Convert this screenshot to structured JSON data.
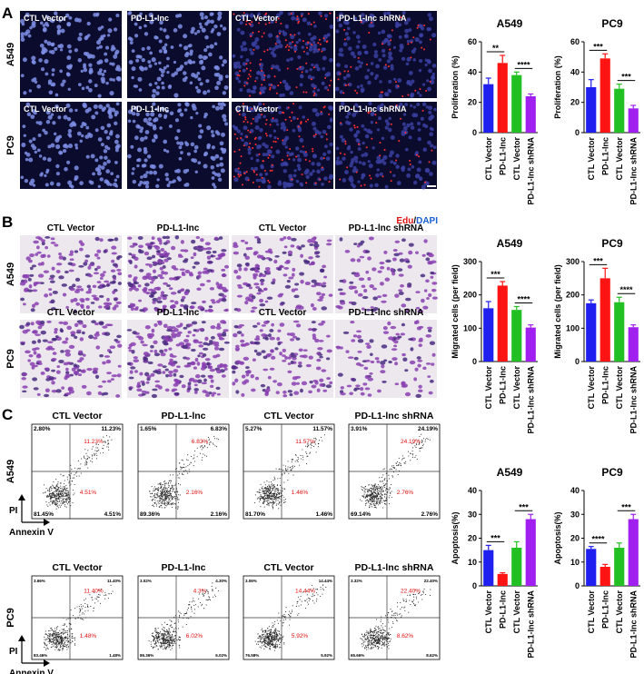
{
  "panels": [
    {
      "label": "A",
      "row_labels": [
        "A549",
        "PC9"
      ],
      "image_labels": [
        [
          "CTL Vector",
          "PD-L1-lnc",
          "CTL Vector",
          "PD-L1-lnc shRNA"
        ],
        [
          "CTL Vector",
          "PD-L1-lnc",
          "CTL Vector",
          "PD-L1-lnc shRNA"
        ]
      ],
      "stain": {
        "edu": "Edu",
        "slash": "/",
        "dapi": "DAPI"
      }
    },
    {
      "label": "B",
      "row_labels": [
        "A549",
        "PC9"
      ],
      "image_labels": [
        [
          "CTL Vector",
          "PD-L1-lnc",
          "CTL Vector",
          "PD-L1-lnc shRNA"
        ],
        [
          "CTL Vector",
          "PD-L1-lnc",
          "CTL Vector",
          "PD-L1-lnc shRNA"
        ]
      ]
    },
    {
      "label": "C",
      "row_labels": [
        "A549",
        "PC9"
      ],
      "image_labels": [
        [
          "CTL Vector",
          "PD-L1-lnc",
          "CTL Vector",
          "PD-L1-lnc shRNA"
        ],
        [
          "CTL Vector",
          "PD-L1-lnc",
          "CTL Vector",
          "PD-L1-lnc shRNA"
        ]
      ],
      "axis_labels": {
        "y": "PI",
        "x": "Annexin V"
      },
      "plots": [
        [
          {
            "quadrants": [
              "2.80%",
              "11.23%",
              "81.45%",
              "4.51%"
            ],
            "highlights": [
              "11.23%",
              "4.51%"
            ]
          },
          {
            "quadrants": [
              "1.65%",
              "6.83%",
              "89.36%",
              "2.16%"
            ],
            "highlights": [
              "6.83%",
              "2.16%"
            ]
          },
          {
            "quadrants": [
              "5.27%",
              "11.57%",
              "81.70%",
              "1.46%"
            ],
            "highlights": [
              "11.57%",
              "1.46%"
            ]
          },
          {
            "quadrants": [
              "3.91%",
              "24.19%",
              "69.14%",
              "2.76%"
            ],
            "highlights": [
              "24.19%",
              "2.76%"
            ]
          }
        ],
        [
          {
            "quadrants": [
              "3.66%",
              "11.40%",
              "83.46%",
              "1.48%"
            ],
            "highlights": [
              "11.40%",
              "1.48%"
            ]
          },
          {
            "quadrants": [
              "3.02%",
              "4.30%",
              "86.36%",
              "6.02%"
            ],
            "highlights": [
              "4.3%",
              "6.02%"
            ]
          },
          {
            "quadrants": [
              "3.06%",
              "14.44%",
              "76.58%",
              "5.92%"
            ],
            "highlights": [
              "14.44%",
              "5.92%"
            ]
          },
          {
            "quadrants": [
              "3.32%",
              "22.40%",
              "65.66%",
              "8.62%"
            ],
            "highlights": [
              "22.40%",
              "8.62%"
            ]
          }
        ]
      ]
    }
  ],
  "chart_data": [
    {
      "type": "bar",
      "title": "A549",
      "y_label": "Proliferation (%)",
      "categories": [
        "CTL Vector",
        "PD-L1-lnc",
        "CTL Vector",
        "PD-L1-lnc shRNA"
      ],
      "values": [
        32,
        46,
        38,
        24
      ],
      "errors": [
        4,
        5,
        2,
        1.5
      ],
      "colors": [
        "#1f1fef",
        "#ff1414",
        "#22c022",
        "#a020f0"
      ],
      "ylim": [
        0,
        60
      ],
      "yticks": [
        0,
        20,
        40,
        60
      ],
      "annotations": [
        "**",
        "****"
      ]
    },
    {
      "type": "bar",
      "title": "PC9",
      "y_label": "Proliferation (%)",
      "categories": [
        "CTL Vector",
        "PD-L1-lnc",
        "CTL Vector",
        "PD-L1-lnc shRNA"
      ],
      "values": [
        30,
        49,
        29,
        16
      ],
      "errors": [
        5,
        3,
        3,
        2
      ],
      "colors": [
        "#1f1fef",
        "#ff1414",
        "#22c022",
        "#a020f0"
      ],
      "ylim": [
        0,
        60
      ],
      "yticks": [
        0,
        20,
        40,
        60
      ],
      "annotations": [
        "***",
        "***"
      ]
    },
    {
      "type": "bar",
      "title": "A549",
      "y_label": "Migrated cells (per field)",
      "categories": [
        "CTL Vector",
        "PD-L1-lnc",
        "CTL Vector",
        "PD-L1-lnc shRNA"
      ],
      "values": [
        160,
        228,
        155,
        102
      ],
      "errors": [
        20,
        12,
        10,
        8
      ],
      "colors": [
        "#1f1fef",
        "#ff1414",
        "#22c022",
        "#a020f0"
      ],
      "ylim": [
        0,
        300
      ],
      "yticks": [
        0,
        100,
        200,
        300
      ],
      "annotations": [
        "***",
        "****"
      ]
    },
    {
      "type": "bar",
      "title": "PC9",
      "y_label": "Migrated cells (per field)",
      "categories": [
        "CTL Vector",
        "PD-L1-lnc",
        "CTL Vector",
        "PD-L1-lnc shRNA"
      ],
      "values": [
        175,
        250,
        178,
        103
      ],
      "errors": [
        10,
        30,
        15,
        7
      ],
      "colors": [
        "#1f1fef",
        "#ff1414",
        "#22c022",
        "#a020f0"
      ],
      "ylim": [
        0,
        300
      ],
      "yticks": [
        0,
        100,
        200,
        300
      ],
      "annotations": [
        "***",
        "****"
      ]
    },
    {
      "type": "bar",
      "title": "A549",
      "y_label": "Apoptosis(%)",
      "categories": [
        "CTL Vector",
        "PD-L1-lnc",
        "CTL Vector",
        "PD-L1-lnc shRNA"
      ],
      "values": [
        15,
        5,
        16,
        28
      ],
      "errors": [
        2,
        0.5,
        2.5,
        2
      ],
      "colors": [
        "#1f1fef",
        "#ff1414",
        "#22c022",
        "#a020f0"
      ],
      "ylim": [
        0,
        40
      ],
      "yticks": [
        0,
        10,
        20,
        30,
        40
      ],
      "annotations": [
        "***",
        "***"
      ]
    },
    {
      "type": "bar",
      "title": "PC9",
      "y_label": "Apoptosis(%)",
      "categories": [
        "CTL Vector",
        "PD-L1-lnc",
        "CTL Vector",
        "PD-L1-lnc shRNA"
      ],
      "values": [
        15.5,
        8,
        16,
        28
      ],
      "errors": [
        1,
        1,
        2,
        2
      ],
      "colors": [
        "#1f1fef",
        "#ff1414",
        "#22c022",
        "#a020f0"
      ],
      "ylim": [
        0,
        40
      ],
      "yticks": [
        0,
        10,
        20,
        30,
        40
      ],
      "annotations": [
        "****",
        "***"
      ]
    }
  ]
}
